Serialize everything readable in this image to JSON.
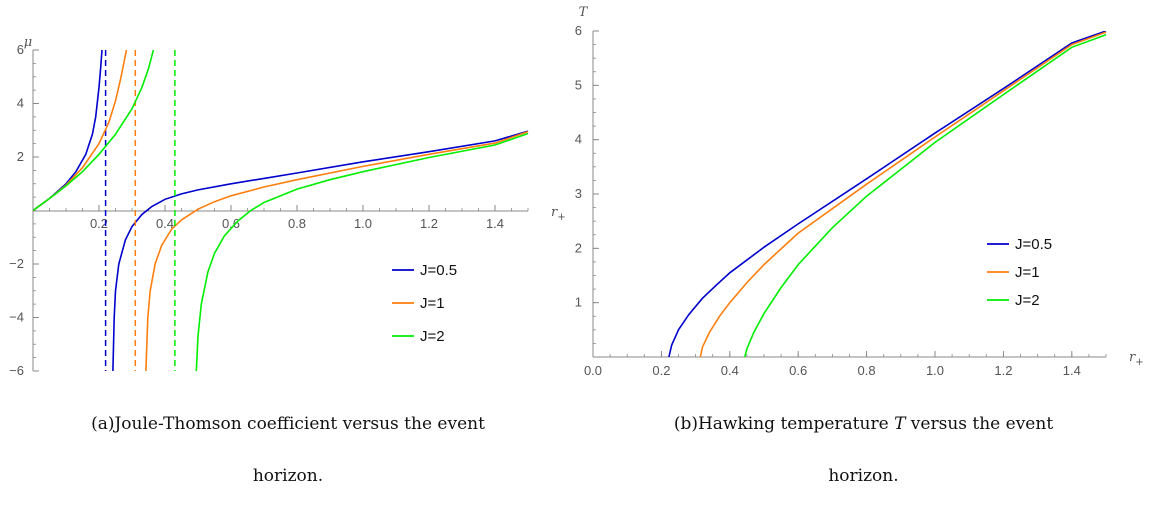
{
  "chart_data": [
    {
      "type": "line",
      "panel": "left",
      "ylabel": "μ",
      "xlabel_base": "r",
      "xlabel_sub": "+",
      "xlim": [
        0,
        1.5
      ],
      "ylim": [
        -6,
        6
      ],
      "xticks": [
        0.2,
        0.4,
        0.6,
        0.8,
        1.0,
        1.2,
        1.4
      ],
      "xtick_labels": [
        "0.2",
        "0.4",
        "0.6",
        "0.8",
        "1.0",
        "1.2",
        "1.4"
      ],
      "yticks": [
        -6,
        -4,
        -2,
        2,
        4,
        6
      ],
      "ytick_labels": [
        "−6",
        "−4",
        "−2",
        "2",
        "4",
        "6"
      ],
      "legend_position": "lower-right",
      "series": [
        {
          "name": "J=0.5",
          "color": "#0000cc",
          "asymptote": 0.22,
          "branches": [
            {
              "x": [
                0.0,
                0.05,
                0.1,
                0.13,
                0.16,
                0.18,
                0.19,
                0.2,
                0.205,
                0.209
              ],
              "y": [
                0.0,
                0.45,
                1.0,
                1.45,
                2.1,
                2.85,
                3.5,
                4.6,
                5.3,
                6.0
              ]
            },
            {
              "x": [
                0.242,
                0.246,
                0.25,
                0.26,
                0.28,
                0.3,
                0.33,
                0.36,
                0.4,
                0.45,
                0.5,
                0.6,
                0.7,
                0.8,
                1.0,
                1.2,
                1.4,
                1.5
              ],
              "y": [
                -6.0,
                -4.0,
                -3.0,
                -2.0,
                -1.1,
                -0.6,
                -0.15,
                0.15,
                0.42,
                0.62,
                0.77,
                1.0,
                1.2,
                1.4,
                1.82,
                2.2,
                2.6,
                2.97
              ]
            }
          ]
        },
        {
          "name": "J=1",
          "color": "#ff7f0e",
          "asymptote": 0.31,
          "branches": [
            {
              "x": [
                0.0,
                0.05,
                0.1,
                0.15,
                0.2,
                0.23,
                0.25,
                0.265,
                0.275,
                0.283
              ],
              "y": [
                0.0,
                0.45,
                0.95,
                1.6,
                2.5,
                3.3,
                4.1,
                4.9,
                5.5,
                6.0
              ]
            },
            {
              "x": [
                0.342,
                0.348,
                0.355,
                0.37,
                0.39,
                0.42,
                0.45,
                0.5,
                0.55,
                0.6,
                0.7,
                0.8,
                1.0,
                1.2,
                1.4,
                1.5
              ],
              "y": [
                -6.0,
                -4.0,
                -3.0,
                -2.0,
                -1.3,
                -0.7,
                -0.35,
                0.05,
                0.33,
                0.55,
                0.88,
                1.15,
                1.65,
                2.1,
                2.52,
                2.95
              ]
            }
          ]
        },
        {
          "name": "J=2",
          "color": "#00ee00",
          "asymptote": 0.43,
          "branches": [
            {
              "x": [
                0.0,
                0.05,
                0.1,
                0.15,
                0.2,
                0.25,
                0.3,
                0.33,
                0.35,
                0.365
              ],
              "y": [
                0.0,
                0.45,
                0.92,
                1.45,
                2.1,
                2.85,
                3.8,
                4.6,
                5.3,
                6.0
              ]
            },
            {
              "x": [
                0.495,
                0.5,
                0.51,
                0.53,
                0.55,
                0.58,
                0.62,
                0.66,
                0.7,
                0.8,
                0.9,
                1.0,
                1.2,
                1.4,
                1.5
              ],
              "y": [
                -6.0,
                -4.7,
                -3.5,
                -2.3,
                -1.6,
                -0.95,
                -0.4,
                0.0,
                0.3,
                0.8,
                1.15,
                1.45,
                1.98,
                2.45,
                2.88
              ]
            }
          ]
        }
      ]
    },
    {
      "type": "line",
      "panel": "right",
      "ylabel": "T",
      "xlabel_base": "r",
      "xlabel_sub": "+",
      "xlim": [
        0,
        1.5
      ],
      "ylim": [
        0,
        6
      ],
      "xticks": [
        0.0,
        0.2,
        0.4,
        0.6,
        0.8,
        1.0,
        1.2,
        1.4
      ],
      "xtick_labels": [
        "0.0",
        "0.2",
        "0.4",
        "0.6",
        "0.8",
        "1.0",
        "1.2",
        "1.4"
      ],
      "yticks": [
        1,
        2,
        3,
        4,
        5,
        6
      ],
      "ytick_labels": [
        "1",
        "2",
        "3",
        "4",
        "5",
        "6"
      ],
      "legend_position": "center-right",
      "series": [
        {
          "name": "J=0.5",
          "color": "#0000cc",
          "x": [
            0.222,
            0.23,
            0.25,
            0.28,
            0.32,
            0.36,
            0.4,
            0.5,
            0.6,
            0.8,
            1.0,
            1.2,
            1.4,
            1.5
          ],
          "y": [
            0.0,
            0.22,
            0.5,
            0.78,
            1.08,
            1.32,
            1.55,
            2.02,
            2.45,
            3.28,
            4.12,
            4.94,
            5.78,
            6.0
          ]
        },
        {
          "name": "J=1",
          "color": "#ff7f0e",
          "x": [
            0.314,
            0.32,
            0.34,
            0.37,
            0.4,
            0.45,
            0.5,
            0.6,
            0.8,
            1.0,
            1.2,
            1.4,
            1.5
          ],
          "y": [
            0.0,
            0.18,
            0.45,
            0.75,
            1.0,
            1.37,
            1.7,
            2.28,
            3.18,
            4.05,
            4.9,
            5.75,
            5.98
          ]
        },
        {
          "name": "J=2",
          "color": "#00ee00",
          "x": [
            0.444,
            0.45,
            0.47,
            0.5,
            0.55,
            0.6,
            0.7,
            0.8,
            1.0,
            1.2,
            1.4,
            1.5
          ],
          "y": [
            0.0,
            0.15,
            0.45,
            0.8,
            1.28,
            1.7,
            2.38,
            2.96,
            3.95,
            4.83,
            5.7,
            5.93
          ]
        }
      ]
    }
  ],
  "captions": {
    "left_line1": "(a)Joule-Thomson coefficient versus the event",
    "left_line2": "horizon.",
    "right_line1_pre": "(b)Hawking temperature ",
    "right_line1_var": "T",
    "right_line1_post": " versus the event",
    "right_line2": "horizon."
  }
}
